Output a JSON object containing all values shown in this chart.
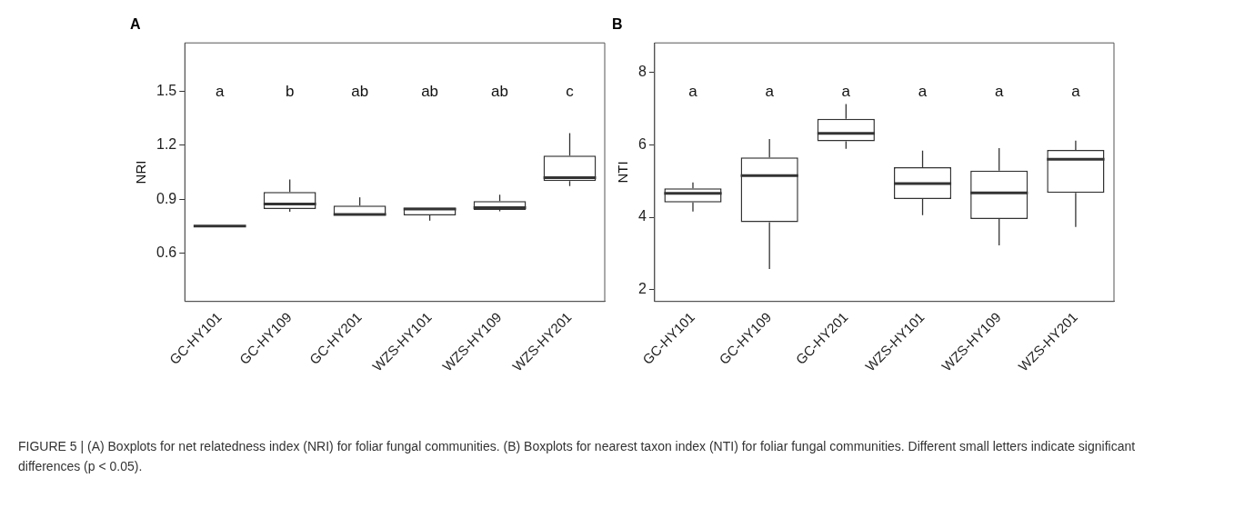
{
  "chart_data": [
    {
      "type": "box",
      "title": "A",
      "ylabel": "NRI",
      "categories": [
        "GC-HY101",
        "GC-HY109",
        "GC-HY201",
        "WZS-HY101",
        "WZS-HY109",
        "WZS-HY201"
      ],
      "boxes": [
        {
          "low": 0.75,
          "q1": 0.75,
          "median": 0.75,
          "q3": 0.75,
          "high": 0.75
        },
        {
          "low": 0.83,
          "q1": 0.845,
          "median": 0.873,
          "q3": 0.94,
          "high": 1.01
        },
        {
          "low": 0.81,
          "q1": 0.81,
          "median": 0.815,
          "q3": 0.864,
          "high": 0.91
        },
        {
          "low": 0.78,
          "q1": 0.81,
          "median": 0.845,
          "q3": 0.852,
          "high": 0.852
        },
        {
          "low": 0.832,
          "q1": 0.84,
          "median": 0.853,
          "q3": 0.889,
          "high": 0.925
        },
        {
          "low": 0.973,
          "q1": 1.0,
          "median": 1.019,
          "q3": 1.142,
          "high": 1.267
        }
      ],
      "color": "#333333",
      "ylim": [
        0.33,
        1.77
      ],
      "yticks": [
        0.6,
        0.9,
        1.2,
        1.5
      ],
      "grid": false,
      "annotations": [
        "a",
        "b",
        "ab",
        "ab",
        "ab",
        "c",
        "FIGURE 5 | (A) Boxplots for net relatedness index (NRI) for foliar fungal communities. (B) Boxplots for nearest taxon index (NTI) for foliar fungal communities. Different small letters indicate significant differences (p < 0.05)."
      ]
    },
    {
      "type": "box",
      "title": "B",
      "ylabel": "NTI",
      "categories": [
        "GC-HY101",
        "GC-HY109",
        "GC-HY201",
        "WZS-HY101",
        "WZS-HY109",
        "WZS-HY201"
      ],
      "boxes": [
        {
          "low": 4.16,
          "q1": 4.41,
          "median": 4.66,
          "q3": 4.8,
          "high": 4.96
        },
        {
          "low": 2.57,
          "q1": 3.86,
          "median": 5.15,
          "q3": 5.65,
          "high": 6.16
        },
        {
          "low": 5.89,
          "q1": 6.1,
          "median": 6.32,
          "q3": 6.72,
          "high": 7.13
        },
        {
          "low": 4.06,
          "q1": 4.5,
          "median": 4.93,
          "q3": 5.38,
          "high": 5.84
        },
        {
          "low": 3.22,
          "q1": 3.95,
          "median": 4.67,
          "q3": 5.29,
          "high": 5.91
        },
        {
          "low": 3.73,
          "q1": 4.67,
          "median": 5.6,
          "q3": 5.86,
          "high": 6.12
        }
      ],
      "color": "#333333",
      "ylim": [
        1.67,
        8.82
      ],
      "yticks": [
        2,
        4,
        6,
        8
      ],
      "grid": false,
      "annotations": [
        "a",
        "a",
        "a",
        "a",
        "a",
        "a"
      ]
    }
  ]
}
